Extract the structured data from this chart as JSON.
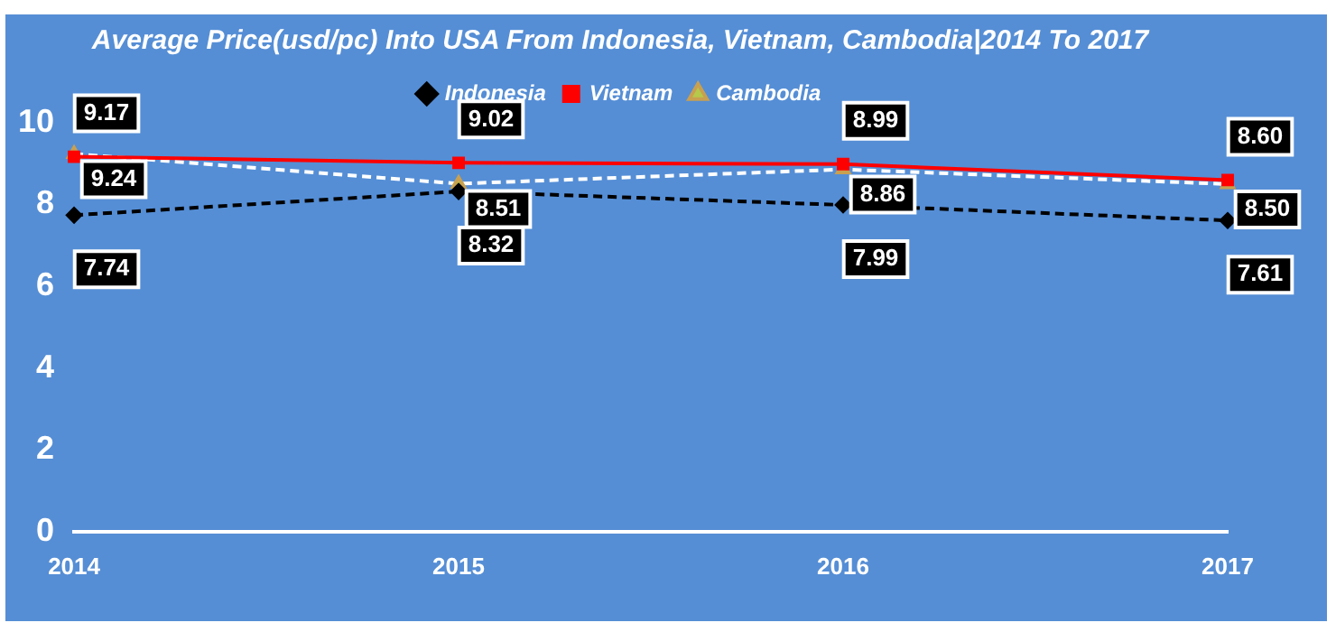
{
  "chart_data": {
    "type": "line",
    "title": "Average Price(usd/pc) Into USA From Indonesia, Vietnam, Cambodia|2014 To 2017",
    "categories": [
      "2014",
      "2015",
      "2016",
      "2017"
    ],
    "series": [
      {
        "name": "Indonesia",
        "color": "#000000",
        "values": [
          7.74,
          8.32,
          7.99,
          7.61
        ],
        "value_labels": [
          "7.74",
          "8.32",
          "7.99",
          "7.61"
        ],
        "marker": "diamond",
        "line_style": "dashed"
      },
      {
        "name": "Vietnam",
        "color": "#ff0000",
        "values": [
          9.17,
          9.02,
          8.99,
          8.6
        ],
        "value_labels": [
          "9.17",
          "9.02",
          "8.99",
          "8.60"
        ],
        "marker": "square",
        "line_style": "solid"
      },
      {
        "name": "Cambodia",
        "color": "#ffffff",
        "values": [
          9.24,
          8.51,
          8.86,
          8.5
        ],
        "value_labels": [
          "9.24",
          "8.51",
          "8.86",
          "8.50"
        ],
        "marker": "triangle",
        "line_style": "dashed"
      }
    ],
    "ylim": [
      0,
      10
    ],
    "yticks": [
      0,
      2,
      4,
      6,
      8,
      10
    ],
    "grid": false,
    "legend": "top"
  }
}
